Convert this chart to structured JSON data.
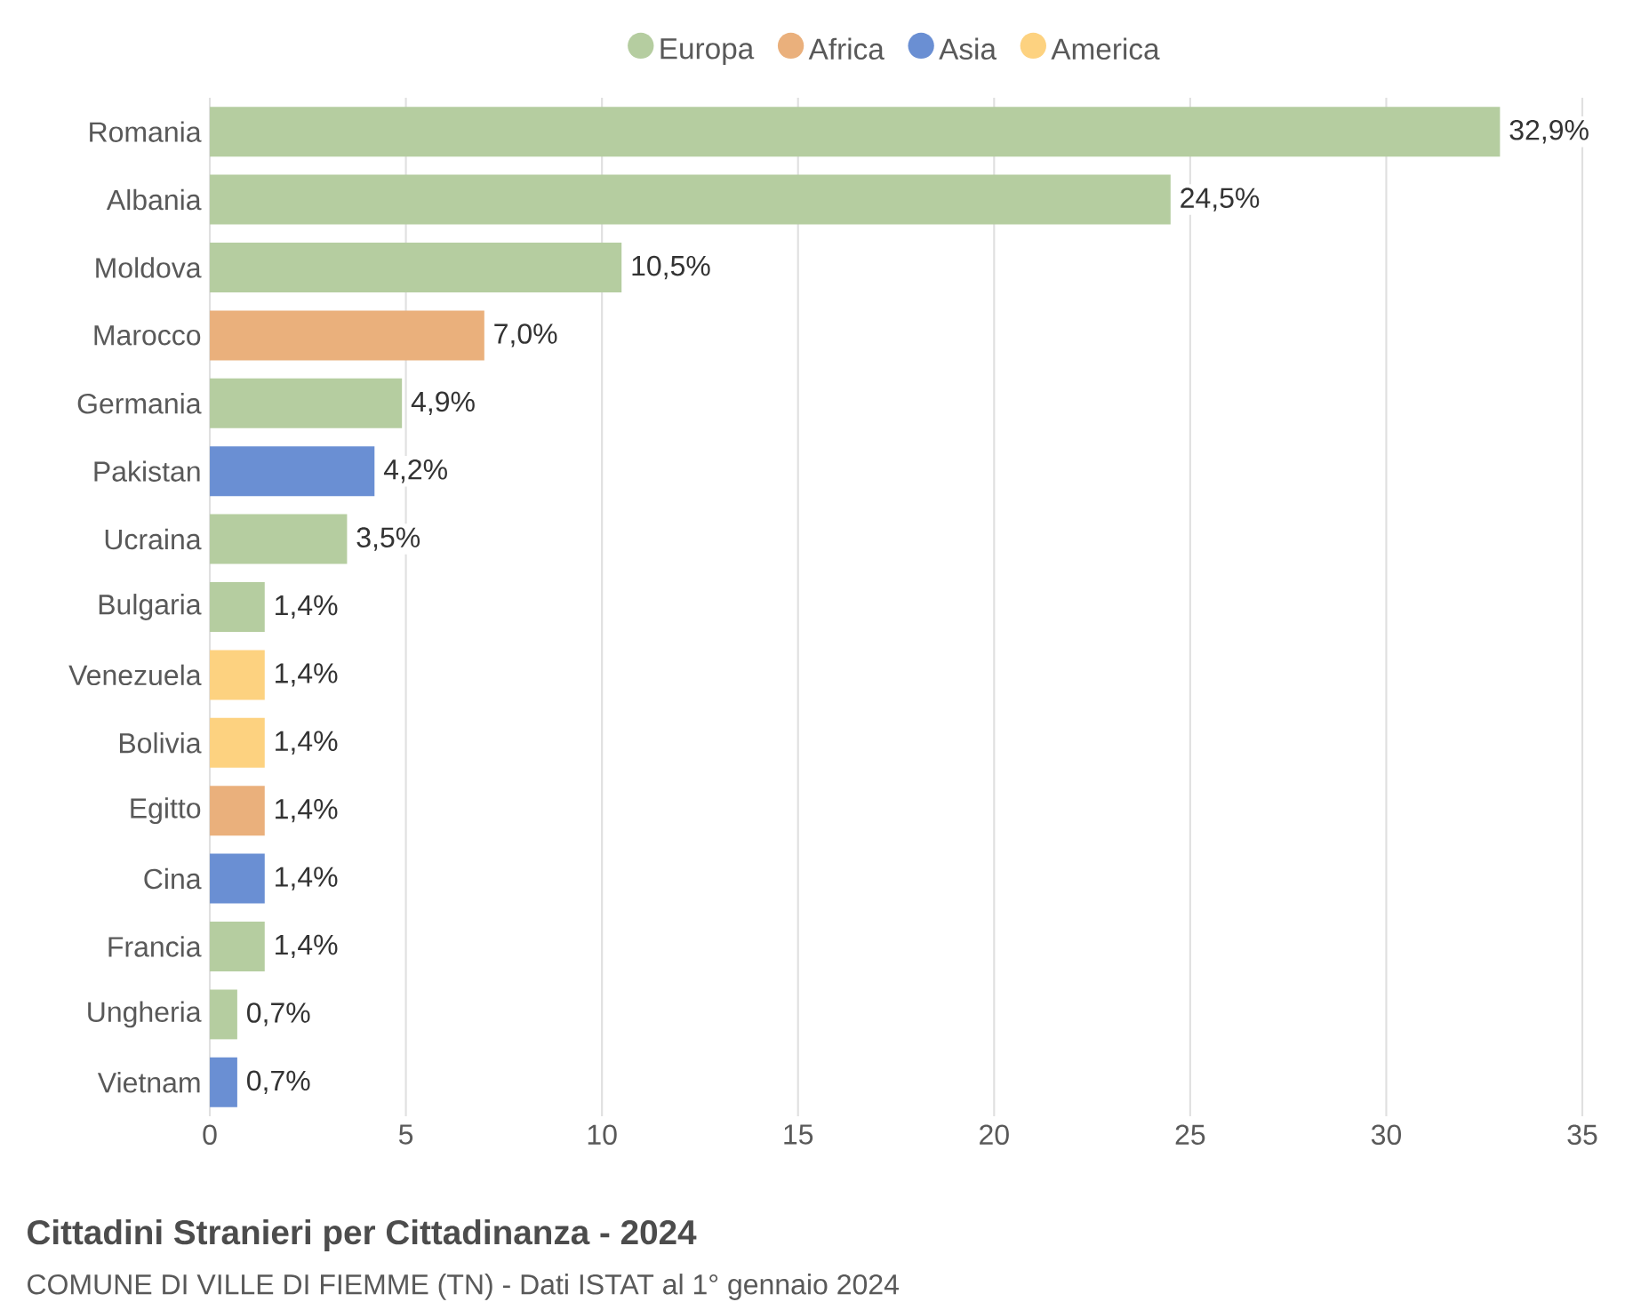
{
  "chart_data": {
    "type": "bar",
    "orientation": "horizontal",
    "title": "Cittadini Stranieri per Cittadinanza - 2024",
    "annotations": [
      "COMUNE DI VILLE DI FIEMME (TN) - Dati ISTAT al 1° gennaio 2024"
    ],
    "categories": [
      "Romania",
      "Albania",
      "Moldova",
      "Marocco",
      "Germania",
      "Pakistan",
      "Ucraina",
      "Bulgaria",
      "Venezuela",
      "Bolivia",
      "Egitto",
      "Cina",
      "Francia",
      "Ungheria",
      "Vietnam"
    ],
    "series": [
      {
        "name": "Europa",
        "color": "#b5cda0",
        "values": [
          32.9,
          24.5,
          10.5,
          null,
          4.9,
          null,
          3.5,
          1.4,
          null,
          null,
          null,
          null,
          1.4,
          0.7,
          null
        ],
        "value_labels": [
          "32,9%",
          "24,5%",
          "10,5%",
          null,
          "4,9%",
          null,
          "3,5%",
          "1,4%",
          null,
          null,
          null,
          null,
          "1,4%",
          "0,7%",
          null
        ]
      },
      {
        "name": "Africa",
        "color": "#eab07c",
        "values": [
          null,
          null,
          null,
          7.0,
          null,
          null,
          null,
          null,
          null,
          null,
          1.4,
          null,
          null,
          null,
          null
        ],
        "value_labels": [
          null,
          null,
          null,
          "7,0%",
          null,
          null,
          null,
          null,
          null,
          null,
          "1,4%",
          null,
          null,
          null,
          null
        ]
      },
      {
        "name": "Asia",
        "color": "#6a8fd3",
        "values": [
          null,
          null,
          null,
          null,
          null,
          4.2,
          null,
          null,
          null,
          null,
          null,
          1.4,
          null,
          null,
          0.7
        ],
        "value_labels": [
          null,
          null,
          null,
          null,
          null,
          "4,2%",
          null,
          null,
          null,
          null,
          null,
          "1,4%",
          null,
          null,
          "0,7%"
        ]
      },
      {
        "name": "America",
        "color": "#fdd280",
        "values": [
          null,
          null,
          null,
          null,
          null,
          null,
          null,
          null,
          1.4,
          1.4,
          null,
          null,
          null,
          null,
          null
        ],
        "value_labels": [
          null,
          null,
          null,
          null,
          null,
          null,
          null,
          null,
          "1,4%",
          "1,4%",
          null,
          null,
          null,
          null,
          null
        ]
      }
    ],
    "xlim": [
      0,
      35
    ],
    "xticks": [
      0,
      5,
      10,
      15,
      20,
      25,
      30,
      35
    ],
    "grid": "x",
    "legend": "top"
  }
}
